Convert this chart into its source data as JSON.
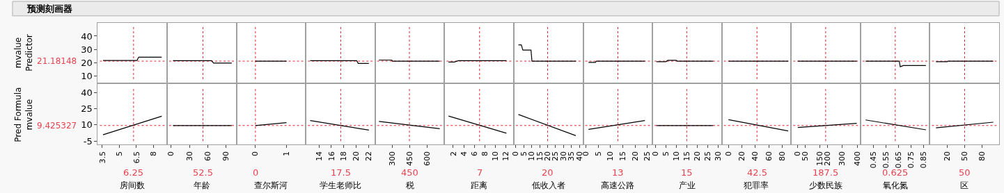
{
  "chart_data": [
    {
      "type": "line",
      "title": "预测刻画器",
      "ylabel": "mvalue\nPredictor",
      "x": [
        3.56,
        6.55,
        6.7,
        8.73
      ],
      "values": [
        21.7,
        21.7,
        24.2,
        24.2
      ],
      "color": "#000000",
      "xlim": [
        3.1,
        9.2
      ],
      "xticks": [
        3.5,
        5,
        6.5,
        8
      ],
      "ylim": [
        5,
        50
      ],
      "yticks": [
        10,
        20,
        30,
        40
      ],
      "tick_labels": "y",
      "ref_lines": [
        {
          "axis": "x",
          "value": 6.25,
          "color": "#e8202e",
          "line_style": "dotted"
        },
        {
          "axis": "y",
          "value": 21.18148,
          "label": "21.18148",
          "color": "#e8202e",
          "line_style": "dotted"
        }
      ]
    },
    {
      "type": "line",
      "x": [
        2.9,
        66.5,
        70,
        100
      ],
      "values": [
        21.5,
        21.5,
        19.7,
        19.7
      ],
      "color": "#000000",
      "xlim": [
        -6.8,
        107.7
      ],
      "xticks": [
        0,
        30,
        60,
        90
      ],
      "ylim": [
        5,
        50
      ],
      "yticks": [
        10,
        20,
        30,
        40
      ],
      "tick_labels": false,
      "ref_lines": [
        {
          "axis": "x",
          "value": 52.5,
          "color": "#e8202e",
          "line_style": "dotted"
        },
        {
          "axis": "y",
          "value": 21.18148,
          "color": "#e8202e",
          "line_style": "dotted"
        }
      ]
    },
    {
      "type": "line",
      "x": [
        0,
        1
      ],
      "values": [
        21.2,
        21.2
      ],
      "color": "#000000",
      "xlim": [
        -0.61,
        1.62
      ],
      "xticks": [
        0,
        1
      ],
      "ylim": [
        5,
        50
      ],
      "yticks": [
        10,
        20,
        30,
        40
      ],
      "tick_labels": false,
      "ref_lines": [
        {
          "axis": "x",
          "value": 0,
          "color": "#e8202e",
          "line_style": "dotted"
        },
        {
          "axis": "y",
          "value": 21.18148,
          "color": "#e8202e",
          "line_style": "dotted"
        }
      ]
    },
    {
      "type": "line",
      "x": [
        12.6,
        20.04,
        20.3,
        22
      ],
      "values": [
        21.5,
        21.5,
        19.5,
        19.5
      ],
      "color": "#000000",
      "xlim": [
        11.9,
        23
      ],
      "xticks": [
        14,
        16,
        18,
        20,
        22
      ],
      "ylim": [
        5,
        50
      ],
      "yticks": [
        10,
        20,
        30,
        40
      ],
      "tick_labels": false,
      "ref_lines": [
        {
          "axis": "x",
          "value": 17.5,
          "color": "#e8202e",
          "line_style": "dotted"
        },
        {
          "axis": "y",
          "value": 21.18148,
          "color": "#e8202e",
          "line_style": "dotted"
        }
      ]
    },
    {
      "type": "line",
      "x": [
        187,
        298,
        302,
        711
      ],
      "values": [
        22,
        22,
        21.2,
        21.2
      ],
      "color": "#000000",
      "xlim": [
        154,
        752
      ],
      "xticks": [
        300,
        450,
        600
      ],
      "ylim": [
        5,
        50
      ],
      "yticks": [
        10,
        20,
        30,
        40
      ],
      "tick_labels": false,
      "ref_lines": [
        {
          "axis": "x",
          "value": 450,
          "color": "#e8202e",
          "line_style": "dotted"
        },
        {
          "axis": "y",
          "value": 21.18148,
          "color": "#e8202e",
          "line_style": "dotted"
        }
      ]
    },
    {
      "type": "line",
      "x": [
        1.1,
        2.2,
        3,
        12.1
      ],
      "values": [
        20.5,
        20.5,
        21.5,
        21.5
      ],
      "color": "#000000",
      "xlim": [
        0.33,
        13.5
      ],
      "xticks": [
        2,
        4,
        6,
        8,
        10,
        12
      ],
      "ylim": [
        5,
        50
      ],
      "yticks": [
        10,
        20,
        30,
        40
      ],
      "tick_labels": false,
      "ref_lines": [
        {
          "axis": "x",
          "value": 7,
          "color": "#e8202e",
          "line_style": "dotted"
        },
        {
          "axis": "y",
          "value": 21.18148,
          "color": "#e8202e",
          "line_style": "dotted"
        }
      ]
    },
    {
      "type": "line",
      "x": [
        1.7,
        3.5,
        4.5,
        9.6,
        10.2,
        37.7
      ],
      "values": [
        33.4,
        33.4,
        29.5,
        29.5,
        21.2,
        21.2
      ],
      "color": "#000000",
      "xlim": [
        -1.2,
        42.3
      ],
      "xticks": [
        0,
        5,
        10,
        15,
        20,
        25,
        30,
        35,
        40
      ],
      "ylim": [
        5,
        50
      ],
      "yticks": [
        10,
        20,
        30,
        40
      ],
      "tick_labels": false,
      "ref_lines": [
        {
          "axis": "x",
          "value": 20,
          "color": "#e8202e",
          "line_style": "dotted"
        },
        {
          "axis": "y",
          "value": 21.18148,
          "color": "#e8202e",
          "line_style": "dotted"
        }
      ]
    },
    {
      "type": "line",
      "x": [
        1,
        3.8,
        4.2,
        24
      ],
      "values": [
        20.2,
        20.2,
        21.2,
        21.2
      ],
      "color": "#000000",
      "xlim": [
        -1.2,
        27.1
      ],
      "xticks": [
        0,
        5,
        10,
        15,
        20,
        25
      ],
      "ylim": [
        5,
        50
      ],
      "yticks": [
        10,
        20,
        30,
        40
      ],
      "tick_labels": false,
      "ref_lines": [
        {
          "axis": "x",
          "value": 13,
          "color": "#e8202e",
          "line_style": "dotted"
        },
        {
          "axis": "y",
          "value": 21.18148,
          "color": "#e8202e",
          "line_style": "dotted"
        }
      ]
    },
    {
      "type": "line",
      "x": [
        0.5,
        5,
        6,
        10,
        10.5,
        27.7
      ],
      "values": [
        20.8,
        20.8,
        21.8,
        21.8,
        21.2,
        21.2
      ],
      "color": "#000000",
      "xlim": [
        -1.4,
        31.8
      ],
      "xticks": [
        0,
        5,
        10,
        15,
        20,
        25,
        30
      ],
      "ylim": [
        5,
        50
      ],
      "yticks": [
        10,
        20,
        30,
        40
      ],
      "tick_labels": false,
      "ref_lines": [
        {
          "axis": "x",
          "value": 15,
          "color": "#e8202e",
          "line_style": "dotted"
        },
        {
          "axis": "y",
          "value": 21.18148,
          "color": "#e8202e",
          "line_style": "dotted"
        }
      ]
    },
    {
      "type": "line",
      "x": [
        0,
        89
      ],
      "values": [
        21.2,
        21.2
      ],
      "color": "#000000",
      "xlim": [
        -10,
        93.4
      ],
      "xticks": [
        0,
        20,
        40,
        60,
        80
      ],
      "ylim": [
        5,
        50
      ],
      "yticks": [
        10,
        20,
        30,
        40
      ],
      "tick_labels": false,
      "ref_lines": [
        {
          "axis": "x",
          "value": 42.5,
          "color": "#e8202e",
          "line_style": "dotted"
        },
        {
          "axis": "y",
          "value": 21.18148,
          "color": "#e8202e",
          "line_style": "dotted"
        }
      ]
    },
    {
      "type": "line",
      "x": [
        0.3,
        397
      ],
      "values": [
        21.2,
        21.2
      ],
      "color": "#000000",
      "xlim": [
        -45,
        422
      ],
      "xticks": [
        0,
        50,
        150,
        200,
        300,
        400
      ],
      "ylim": [
        5,
        50
      ],
      "yticks": [
        10,
        20,
        30,
        40
      ],
      "tick_labels": false,
      "ref_lines": [
        {
          "axis": "x",
          "value": 187.5,
          "color": "#e8202e",
          "line_style": "dotted"
        },
        {
          "axis": "y",
          "value": 21.18148,
          "color": "#e8202e",
          "line_style": "dotted"
        }
      ]
    },
    {
      "type": "line",
      "x": [
        0.387,
        0.657,
        0.665,
        0.69,
        0.871
      ],
      "values": [
        21.2,
        21.2,
        17,
        17.9,
        17.9
      ],
      "color": "#000000",
      "xlim": [
        0.346,
        0.902
      ],
      "xticks": [
        0.45,
        0.55,
        0.65,
        0.75,
        0.85
      ],
      "ylim": [
        5,
        50
      ],
      "yticks": [
        10,
        20,
        30,
        40
      ],
      "tick_labels": false,
      "ref_lines": [
        {
          "axis": "x",
          "value": 0.625,
          "color": "#e8202e",
          "line_style": "dotted"
        },
        {
          "axis": "y",
          "value": 21.18148,
          "color": "#e8202e",
          "line_style": "dotted"
        }
      ]
    },
    {
      "type": "line",
      "x": [
        1,
        20.4,
        21,
        99
      ],
      "values": [
        20.8,
        20.8,
        21.2,
        21.2
      ],
      "color": "#000000",
      "xlim": [
        -9.6,
        109
      ],
      "xticks": [
        20,
        50,
        80
      ],
      "ylim": [
        5,
        50
      ],
      "yticks": [
        10,
        20,
        30,
        40
      ],
      "tick_labels": false,
      "ref_lines": [
        {
          "axis": "x",
          "value": 50,
          "color": "#e8202e",
          "line_style": "dotted"
        },
        {
          "axis": "y",
          "value": 21.18148,
          "color": "#e8202e",
          "line_style": "dotted"
        }
      ]
    },
    {
      "type": "line",
      "ylabel": "Pred Formula\nmvalue",
      "xlabel": "房间数",
      "x": [
        3.56,
        8.73
      ],
      "values": [
        0.8,
        18.1
      ],
      "color": "#000000",
      "xlim": [
        3.1,
        9.2
      ],
      "xticks": [
        3.5,
        5,
        6.5,
        8
      ],
      "ylim": [
        -8.5,
        48
      ],
      "yticks": [
        -5,
        10,
        25,
        40
      ],
      "ref_lines": [
        {
          "axis": "x",
          "value": 6.25,
          "label": "6.25",
          "color": "#e8202e",
          "line_style": "dotted"
        },
        {
          "axis": "y",
          "value": 9.425327,
          "label": "9.425327",
          "color": "#e8202e",
          "line_style": "dotted"
        }
      ]
    },
    {
      "type": "line",
      "xlabel": "年龄",
      "x": [
        2.9,
        100
      ],
      "values": [
        9.4,
        9.4
      ],
      "color": "#000000",
      "xlim": [
        -6.8,
        107.7
      ],
      "xticks": [
        0,
        30,
        60,
        90
      ],
      "ylim": [
        -8.5,
        48
      ],
      "yticks": [
        -5,
        10,
        25,
        40
      ],
      "tick_labels": "x",
      "ref_lines": [
        {
          "axis": "x",
          "value": 52.5,
          "label": "52.5",
          "color": "#e8202e",
          "line_style": "dotted"
        },
        {
          "axis": "y",
          "value": 9.425327,
          "color": "#e8202e",
          "line_style": "dotted"
        }
      ]
    },
    {
      "type": "line",
      "xlabel": "查尔斯河",
      "x": [
        0,
        1
      ],
      "values": [
        9.4,
        12.1
      ],
      "color": "#000000",
      "xlim": [
        -0.61,
        1.62
      ],
      "xticks": [
        0,
        1
      ],
      "ylim": [
        -8.5,
        48
      ],
      "yticks": [
        -5,
        10,
        25,
        40
      ],
      "tick_labels": "x",
      "ref_lines": [
        {
          "axis": "x",
          "value": 0,
          "label": "0",
          "color": "#e8202e",
          "line_style": "dotted"
        },
        {
          "axis": "y",
          "value": 9.425327,
          "color": "#e8202e",
          "line_style": "dotted"
        }
      ]
    },
    {
      "type": "line",
      "xlabel": "学生老师比",
      "x": [
        12.6,
        22
      ],
      "values": [
        14,
        5.2
      ],
      "color": "#000000",
      "xlim": [
        11.9,
        23
      ],
      "xticks": [
        14,
        16,
        18,
        20,
        22
      ],
      "ylim": [
        -8.5,
        48
      ],
      "yticks": [
        -5,
        10,
        25,
        40
      ],
      "tick_labels": "x",
      "ref_lines": [
        {
          "axis": "x",
          "value": 17.5,
          "label": "17.5",
          "color": "#e8202e",
          "line_style": "dotted"
        },
        {
          "axis": "y",
          "value": 9.425327,
          "color": "#e8202e",
          "line_style": "dotted"
        }
      ]
    },
    {
      "type": "line",
      "xlabel": "税",
      "x": [
        187,
        711
      ],
      "values": [
        13.3,
        6.4
      ],
      "color": "#000000",
      "xlim": [
        154,
        752
      ],
      "xticks": [
        300,
        450,
        600
      ],
      "ylim": [
        -8.5,
        48
      ],
      "yticks": [
        -5,
        10,
        25,
        40
      ],
      "tick_labels": "x",
      "ref_lines": [
        {
          "axis": "x",
          "value": 450,
          "label": "450",
          "color": "#e8202e",
          "line_style": "dotted"
        },
        {
          "axis": "y",
          "value": 9.425327,
          "color": "#e8202e",
          "line_style": "dotted"
        }
      ]
    },
    {
      "type": "line",
      "xlabel": "距离",
      "x": [
        1.1,
        12.1
      ],
      "values": [
        18.3,
        2.2
      ],
      "color": "#000000",
      "xlim": [
        0.33,
        13.5
      ],
      "xticks": [
        2,
        4,
        6,
        8,
        10,
        12
      ],
      "ylim": [
        -8.5,
        48
      ],
      "yticks": [
        -5,
        10,
        25,
        40
      ],
      "tick_labels": "x",
      "ref_lines": [
        {
          "axis": "x",
          "value": 7,
          "label": "7",
          "color": "#e8202e",
          "line_style": "dotted"
        },
        {
          "axis": "y",
          "value": 9.425327,
          "color": "#e8202e",
          "line_style": "dotted"
        }
      ]
    },
    {
      "type": "line",
      "xlabel": "低收入者",
      "x": [
        1.7,
        37.7
      ],
      "values": [
        19.7,
        0
      ],
      "color": "#000000",
      "xlim": [
        -1.2,
        42.3
      ],
      "xticks": [
        0,
        5,
        10,
        15,
        20,
        25,
        30,
        35,
        40
      ],
      "ylim": [
        -8.5,
        48
      ],
      "yticks": [
        -5,
        10,
        25,
        40
      ],
      "tick_labels": "x",
      "ref_lines": [
        {
          "axis": "x",
          "value": 20,
          "label": "20",
          "color": "#e8202e",
          "line_style": "dotted"
        },
        {
          "axis": "y",
          "value": 9.425327,
          "color": "#e8202e",
          "line_style": "dotted"
        }
      ]
    },
    {
      "type": "line",
      "xlabel": "高速公路",
      "x": [
        1,
        24
      ],
      "values": [
        5.8,
        14
      ],
      "color": "#000000",
      "xlim": [
        -1.2,
        27.1
      ],
      "xticks": [
        0,
        5,
        10,
        15,
        20,
        25
      ],
      "ylim": [
        -8.5,
        48
      ],
      "yticks": [
        -5,
        10,
        25,
        40
      ],
      "tick_labels": "x",
      "ref_lines": [
        {
          "axis": "x",
          "value": 13,
          "label": "13",
          "color": "#e8202e",
          "line_style": "dotted"
        },
        {
          "axis": "y",
          "value": 9.425327,
          "color": "#e8202e",
          "line_style": "dotted"
        }
      ]
    },
    {
      "type": "line",
      "xlabel": "产业",
      "x": [
        0.5,
        27.7
      ],
      "values": [
        9.4,
        9.4
      ],
      "color": "#000000",
      "xlim": [
        -1.4,
        31.8
      ],
      "xticks": [
        0,
        5,
        10,
        15,
        20,
        25,
        30
      ],
      "ylim": [
        -8.5,
        48
      ],
      "yticks": [
        -5,
        10,
        25,
        40
      ],
      "tick_labels": "x",
      "ref_lines": [
        {
          "axis": "x",
          "value": 15,
          "label": "15",
          "color": "#e8202e",
          "line_style": "dotted"
        },
        {
          "axis": "y",
          "value": 9.425327,
          "color": "#e8202e",
          "line_style": "dotted"
        }
      ]
    },
    {
      "type": "line",
      "xlabel": "犯罪率",
      "x": [
        0,
        89
      ],
      "values": [
        14.8,
        4.3
      ],
      "color": "#000000",
      "xlim": [
        -10,
        93.4
      ],
      "xticks": [
        0,
        20,
        40,
        60,
        80
      ],
      "ylim": [
        -8.5,
        48
      ],
      "yticks": [
        -5,
        10,
        25,
        40
      ],
      "tick_labels": "x",
      "ref_lines": [
        {
          "axis": "x",
          "value": 42.5,
          "label": "42.5",
          "color": "#e8202e",
          "line_style": "dotted"
        },
        {
          "axis": "y",
          "value": 9.425327,
          "color": "#e8202e",
          "line_style": "dotted"
        }
      ]
    },
    {
      "type": "line",
      "xlabel": "少数民族",
      "x": [
        0.3,
        397
      ],
      "values": [
        7.6,
        11.4
      ],
      "color": "#000000",
      "xlim": [
        -45,
        422
      ],
      "xticks": [
        0,
        50,
        150,
        200,
        300,
        400
      ],
      "ylim": [
        -8.5,
        48
      ],
      "yticks": [
        -5,
        10,
        25,
        40
      ],
      "tick_labels": "x",
      "ref_lines": [
        {
          "axis": "x",
          "value": 187.5,
          "label": "187.5",
          "color": "#e8202e",
          "line_style": "dotted"
        },
        {
          "axis": "y",
          "value": 9.425327,
          "color": "#e8202e",
          "line_style": "dotted"
        }
      ]
    },
    {
      "type": "line",
      "xlabel": "氧化氮",
      "x": [
        0.387,
        0.871
      ],
      "values": [
        14.6,
        5.4
      ],
      "color": "#000000",
      "xlim": [
        0.346,
        0.902
      ],
      "xticks": [
        0.45,
        0.55,
        0.65,
        0.75,
        0.85
      ],
      "ylim": [
        -8.5,
        48
      ],
      "yticks": [
        -5,
        10,
        25,
        40
      ],
      "tick_labels": "x",
      "ref_lines": [
        {
          "axis": "x",
          "value": 0.625,
          "label": "0.625",
          "color": "#e8202e",
          "line_style": "dotted"
        },
        {
          "axis": "y",
          "value": 9.425327,
          "color": "#e8202e",
          "line_style": "dotted"
        }
      ]
    },
    {
      "type": "line",
      "xlabel": "区",
      "x": [
        1,
        99
      ],
      "values": [
        7.3,
        12.5
      ],
      "color": "#000000",
      "xlim": [
        -9.6,
        109
      ],
      "xticks": [
        20,
        50,
        80
      ],
      "ylim": [
        -8.5,
        48
      ],
      "yticks": [
        -5,
        10,
        25,
        40
      ],
      "tick_labels": "x",
      "ref_lines": [
        {
          "axis": "x",
          "value": 50,
          "label": "50",
          "color": "#e8202e",
          "line_style": "dotted"
        },
        {
          "axis": "y",
          "value": 9.425327,
          "color": "#e8202e",
          "line_style": "dotted"
        }
      ]
    }
  ]
}
